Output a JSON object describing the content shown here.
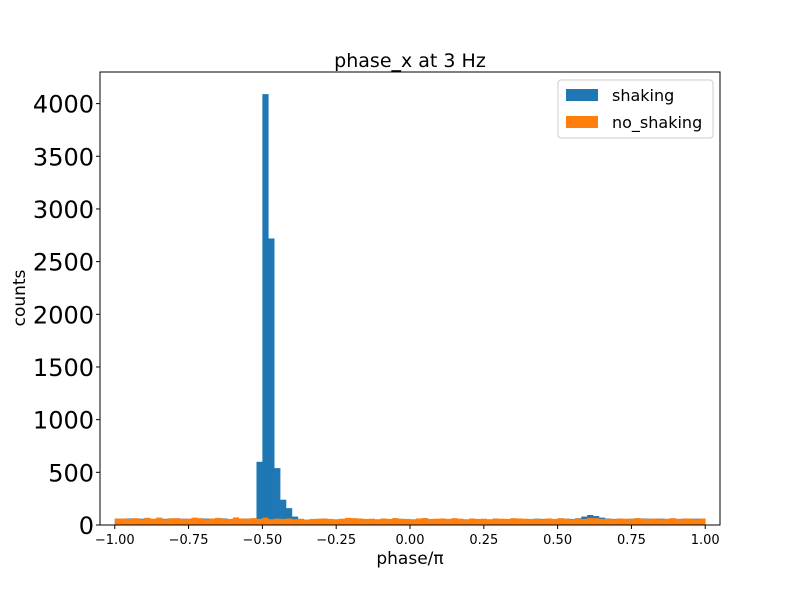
{
  "chart_data": {
    "type": "bar",
    "title": "phase_x at 3 Hz",
    "xlabel": "phase/π",
    "ylabel": "counts",
    "xlim": [
      -1.05,
      1.05
    ],
    "ylim": [
      0,
      4300
    ],
    "grid": false,
    "legend_position": "top-right",
    "x_ticks": [
      -1.0,
      -0.75,
      -0.5,
      -0.25,
      0.0,
      0.25,
      0.5,
      0.75,
      1.0
    ],
    "x_tick_labels": [
      "−1.00",
      "−0.75",
      "−0.50",
      "−0.25",
      "0.00",
      "0.25",
      "0.50",
      "0.75",
      "1.00"
    ],
    "y_ticks": [
      0,
      500,
      1000,
      1500,
      2000,
      2500,
      3000,
      3500,
      4000
    ],
    "y_tick_labels": [
      "0",
      "500",
      "1000",
      "1500",
      "2000",
      "2500",
      "3000",
      "3500",
      "4000"
    ],
    "bin_edges_start": -1.0,
    "bin_width": 0.02,
    "series": [
      {
        "name": "shaking",
        "color": "#1f77b4",
        "values": [
          60,
          58,
          62,
          55,
          60,
          64,
          57,
          61,
          59,
          63,
          56,
          60,
          58,
          62,
          57,
          61,
          59,
          60,
          63,
          56,
          62,
          58,
          61,
          57,
          600,
          4090,
          2720,
          540,
          240,
          160,
          80,
          45,
          40,
          45,
          50,
          48,
          52,
          45,
          50,
          47,
          51,
          46,
          49,
          52,
          45,
          50,
          48,
          51,
          47,
          49,
          46,
          52,
          48,
          50,
          45,
          49,
          51,
          47,
          50,
          48,
          46,
          52,
          45,
          50,
          49,
          47,
          51,
          48,
          50,
          46,
          55,
          60,
          58,
          52,
          50,
          55,
          60,
          58,
          65,
          80,
          95,
          85,
          70,
          62,
          58,
          60,
          55,
          60,
          58,
          62,
          60,
          58,
          60,
          57,
          60,
          58,
          61,
          57,
          60,
          55
        ]
      },
      {
        "name": "no_shaking",
        "color": "#ff7f0e",
        "values": [
          60,
          62,
          58,
          65,
          55,
          68,
          60,
          70,
          55,
          62,
          65,
          58,
          60,
          70,
          65,
          55,
          62,
          68,
          60,
          58,
          72,
          62,
          60,
          65,
          58,
          70,
          55,
          60,
          58,
          62,
          55,
          60,
          52,
          58,
          60,
          62,
          58,
          55,
          60,
          68,
          65,
          62,
          58,
          60,
          55,
          62,
          58,
          66,
          60,
          58,
          55,
          62,
          66,
          58,
          60,
          62,
          58,
          65,
          60,
          55,
          62,
          58,
          60,
          55,
          62,
          60,
          58,
          65,
          62,
          60,
          58,
          60,
          55,
          62,
          58,
          65,
          60,
          55,
          62,
          58,
          66,
          65,
          58,
          60,
          55,
          62,
          60,
          58,
          66,
          60,
          58,
          62,
          55,
          60,
          65,
          58,
          60,
          62,
          55,
          62
        ]
      }
    ]
  }
}
